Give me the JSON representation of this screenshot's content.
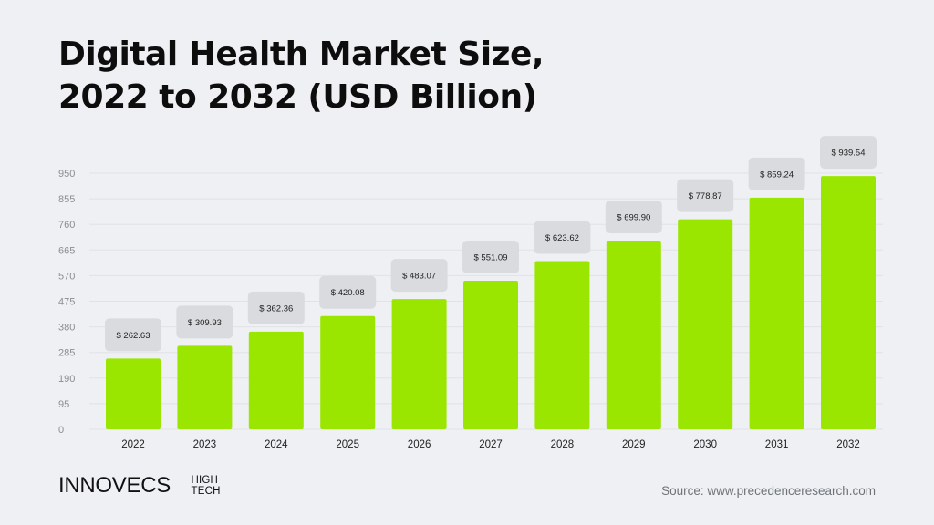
{
  "chart_data": {
    "type": "bar",
    "title_lines": [
      "Digital Health Market Size,",
      "2022 to 2032 (USD Billion)"
    ],
    "categories": [
      "2022",
      "2023",
      "2024",
      "2025",
      "2026",
      "2027",
      "2028",
      "2029",
      "2030",
      "2031",
      "2032"
    ],
    "values": [
      262.63,
      309.93,
      362.36,
      420.08,
      483.07,
      551.09,
      623.62,
      699.9,
      778.87,
      859.24,
      939.54
    ],
    "value_labels": [
      "$ 262.63",
      "$ 309.93",
      "$ 362.36",
      "$ 420.08",
      "$ 483.07",
      "$ 551.09",
      "$ 623.62",
      "$ 699.90",
      "$ 778.87",
      "$ 859.24",
      "$ 939.54"
    ],
    "yticks": [
      0,
      95,
      190,
      285,
      380,
      475,
      570,
      665,
      760,
      855,
      950
    ],
    "ylim": [
      0,
      950
    ],
    "grid": true,
    "bar_color": "#9BE600",
    "label_bg_color": "#D9DBDE"
  },
  "brand": {
    "name": "INNOVECS",
    "sub_line1": "HIGH",
    "sub_line2": "TECH"
  },
  "source": "Source: www.precedenceresearch.com"
}
